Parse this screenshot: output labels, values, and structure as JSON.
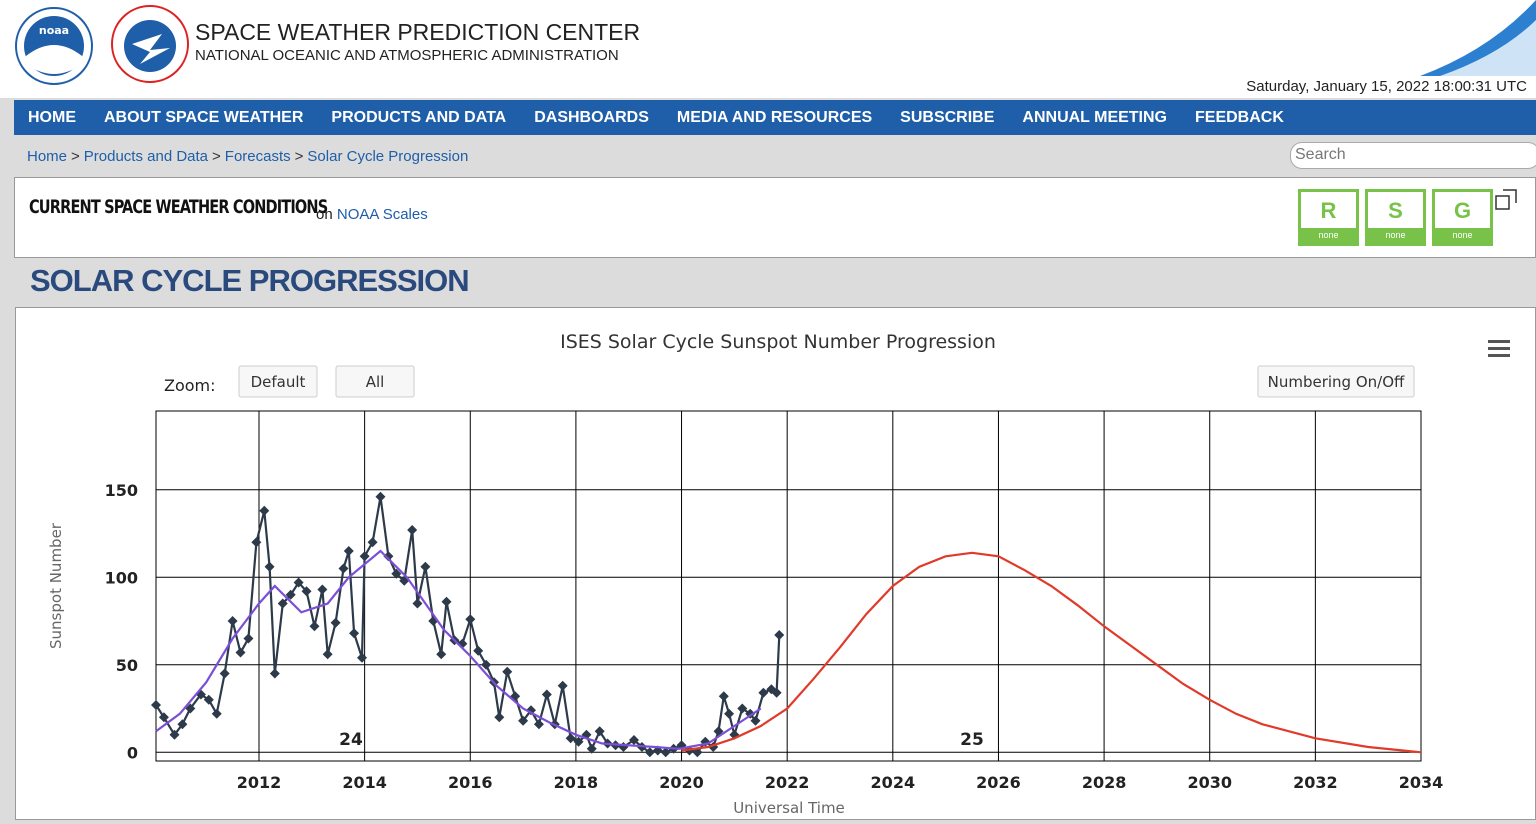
{
  "header": {
    "title": "SPACE WEATHER PREDICTION CENTER",
    "subtitle": "NATIONAL OCEANIC AND ATMOSPHERIC ADMINISTRATION",
    "logo_noaa": "noaa",
    "datetime": "Saturday, January 15, 2022 18:00:31 UTC"
  },
  "nav": [
    "HOME",
    "ABOUT SPACE WEATHER",
    "PRODUCTS AND DATA",
    "DASHBOARDS",
    "MEDIA AND RESOURCES",
    "SUBSCRIBE",
    "ANNUAL MEETING",
    "FEEDBACK"
  ],
  "breadcrumb": {
    "items": [
      "Home",
      "Products and Data",
      "Forecasts",
      "Solar Cycle Progression"
    ],
    "separator": ">"
  },
  "search_placeholder": "Search",
  "conditions": {
    "title": "CURRENT SPACE WEATHER CONDITIONS",
    "on": "on",
    "link": "NOAA Scales",
    "scales": [
      {
        "letter": "R",
        "status": "none"
      },
      {
        "letter": "S",
        "status": "none"
      },
      {
        "letter": "G",
        "status": "none"
      }
    ]
  },
  "page_title": "SOLAR CYCLE PROGRESSION",
  "chart_data": {
    "type": "line",
    "title": "ISES Solar Cycle Sunspot Number Progression",
    "zoom_label": "Zoom:",
    "zoom_buttons": [
      "Default",
      "All"
    ],
    "numbering_button": "Numbering On/Off",
    "xlabel": "Universal Time",
    "ylabel": "Sunspot Number",
    "xlim": [
      2010.05,
      2034
    ],
    "ylim": [
      -5,
      195
    ],
    "xticks": [
      2012,
      2014,
      2016,
      2018,
      2020,
      2022,
      2024,
      2026,
      2028,
      2030,
      2032,
      2034
    ],
    "yticks": [
      0,
      50,
      100,
      150
    ],
    "grid": true,
    "annotations": [
      "24",
      "25"
    ],
    "series": [
      {
        "color": "#2d3a4a",
        "marker": "diamond",
        "x": [
          2010.05,
          2010.2,
          2010.4,
          2010.55,
          2010.7,
          2010.9,
          2011.05,
          2011.2,
          2011.35,
          2011.5,
          2011.65,
          2011.8,
          2011.95,
          2012.1,
          2012.2,
          2012.3,
          2012.45,
          2012.6,
          2012.75,
          2012.9,
          2013.05,
          2013.2,
          2013.3,
          2013.45,
          2013.6,
          2013.7,
          2013.8,
          2013.95,
          2014.0,
          2014.15,
          2014.3,
          2014.45,
          2014.6,
          2014.75,
          2014.9,
          2015.0,
          2015.15,
          2015.3,
          2015.45,
          2015.55,
          2015.7,
          2015.85,
          2016.0,
          2016.15,
          2016.3,
          2016.45,
          2016.55,
          2016.7,
          2016.85,
          2017.0,
          2017.15,
          2017.3,
          2017.45,
          2017.6,
          2017.75,
          2017.9,
          2018.05,
          2018.2,
          2018.3,
          2018.45,
          2018.6,
          2018.75,
          2018.9,
          2019.1,
          2019.25,
          2019.4,
          2019.55,
          2019.7,
          2019.85,
          2020.0,
          2020.15,
          2020.3,
          2020.45,
          2020.6,
          2020.7,
          2020.8,
          2020.9,
          2021.0,
          2021.15,
          2021.3,
          2021.4,
          2021.55,
          2021.7,
          2021.8,
          2021.85
        ],
        "values": [
          27,
          20,
          10,
          16,
          25,
          33,
          30,
          22,
          45,
          75,
          57,
          65,
          120,
          138,
          106,
          45,
          85,
          90,
          97,
          92,
          72,
          93,
          56,
          74,
          105,
          115,
          68,
          54,
          112,
          120,
          146,
          112,
          102,
          98,
          127,
          85,
          106,
          75,
          56,
          86,
          64,
          62,
          76,
          58,
          50,
          40,
          20,
          46,
          32,
          18,
          24,
          16,
          33,
          16,
          38,
          8,
          6,
          10,
          2,
          12,
          5,
          4,
          3,
          7,
          3,
          0,
          1,
          0,
          2,
          4,
          1,
          0,
          6,
          3,
          12,
          32,
          22,
          10,
          25,
          22,
          18,
          34,
          36,
          34,
          67
        ]
      },
      {
        "color": "#7b4fd6",
        "marker": "none",
        "x": [
          2010.05,
          2010.5,
          2011,
          2011.5,
          2012,
          2012.3,
          2012.8,
          2013.3,
          2013.7,
          2014.3,
          2014.8,
          2015.5,
          2016,
          2016.5,
          2017,
          2017.5,
          2018,
          2018.5,
          2019,
          2019.5,
          2019.95,
          2020.5,
          2021,
          2021.5
        ],
        "values": [
          12,
          22,
          40,
          65,
          85,
          95,
          80,
          85,
          100,
          115,
          100,
          70,
          55,
          38,
          25,
          17,
          10,
          5,
          4,
          3,
          2,
          5,
          15,
          25
        ]
      },
      {
        "color": "#e03a2a",
        "marker": "none",
        "x": [
          2020,
          2020.5,
          2021,
          2021.5,
          2022,
          2022.5,
          2023,
          2023.5,
          2024,
          2024.5,
          2025,
          2025.5,
          2026,
          2026.5,
          2027,
          2027.5,
          2028,
          2028.5,
          2029,
          2029.5,
          2030,
          2030.5,
          2031,
          2032,
          2033,
          2034
        ],
        "values": [
          1,
          3,
          8,
          15,
          25,
          42,
          60,
          79,
          95,
          106,
          112,
          114,
          112,
          104,
          95,
          84,
          72,
          61,
          50,
          39,
          30,
          22,
          16,
          8,
          3,
          0
        ]
      }
    ]
  }
}
